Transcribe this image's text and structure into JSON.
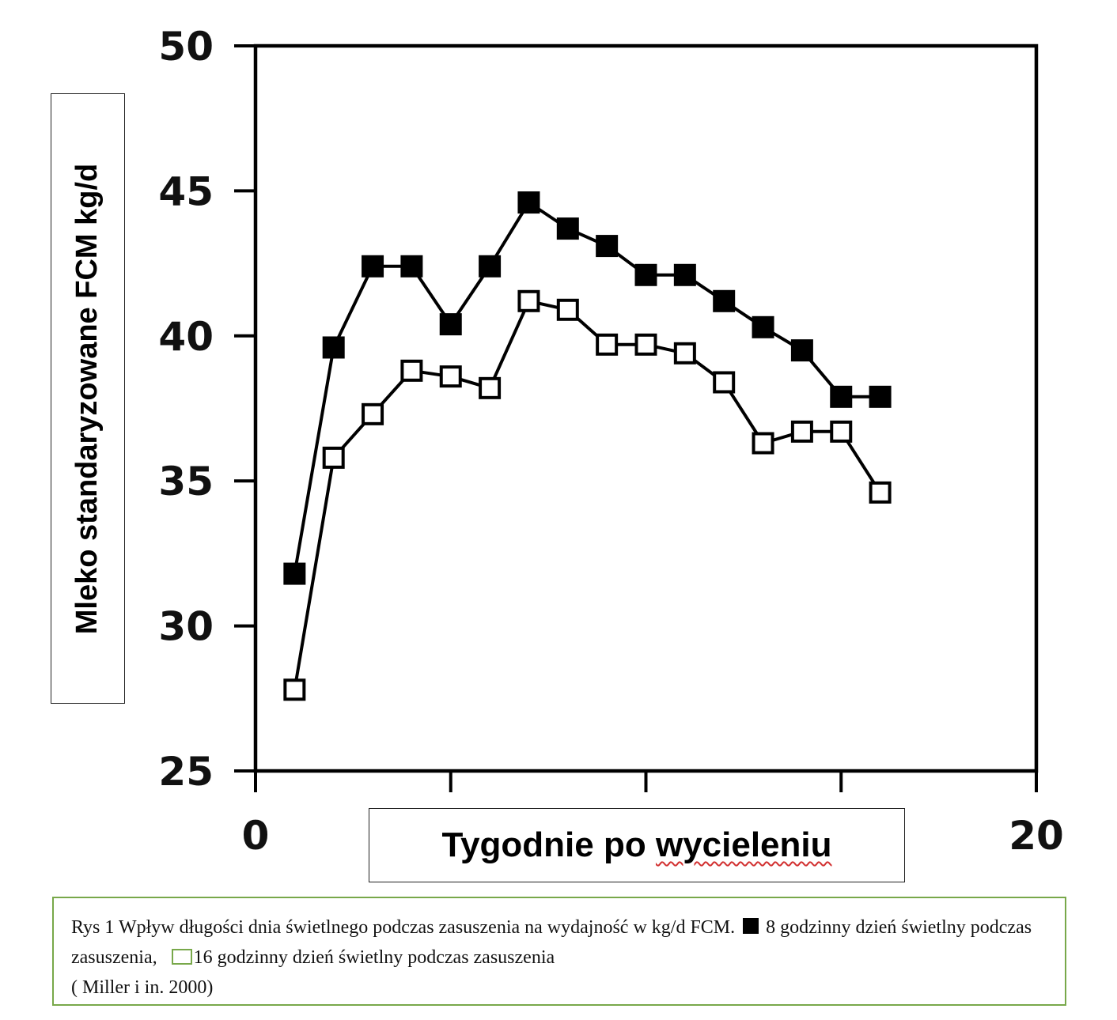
{
  "chart_data": {
    "type": "line",
    "xlabel_prefix": "Tygodnie po ",
    "xlabel_misspelled": "wycieleniu",
    "ylabel": "Mleko standaryzowane FCM kg/d",
    "xlim": [
      0,
      20
    ],
    "ylim": [
      25,
      50
    ],
    "x_tick_labels": [
      "0",
      "20"
    ],
    "x_ticks": [
      0,
      5,
      10,
      15,
      20
    ],
    "y_ticks": [
      25,
      30,
      35,
      40,
      45,
      50
    ],
    "grid": false,
    "x": [
      1,
      2,
      3,
      4,
      5,
      6,
      7,
      8,
      9,
      10,
      11,
      12,
      13,
      14,
      15,
      16
    ],
    "series": [
      {
        "marker": "filled-square",
        "color": "#000000",
        "values": [
          31.8,
          39.6,
          42.4,
          42.4,
          40.4,
          42.4,
          44.6,
          43.7,
          43.1,
          42.1,
          42.1,
          41.2,
          40.3,
          39.5,
          37.9,
          37.9
        ]
      },
      {
        "marker": "open-square",
        "color": "#000000",
        "values": [
          27.8,
          35.8,
          37.3,
          38.8,
          38.6,
          38.2,
          41.2,
          40.9,
          39.7,
          39.7,
          39.4,
          38.4,
          36.3,
          36.7,
          36.7,
          34.6
        ]
      }
    ]
  },
  "caption": {
    "part1": "Rys 1 Wpływ długości dnia świetlnego podczas zasuszenia na wydajność w kg/d FCM.",
    "part2": "8 godzinny dzień świetlny podczas zasuszenia,",
    "part3": "16 godzinny dzień świetlny podczas zasuszenia",
    "part4": "( Miller i in. 2000)",
    "border_color": "#78a84a"
  }
}
